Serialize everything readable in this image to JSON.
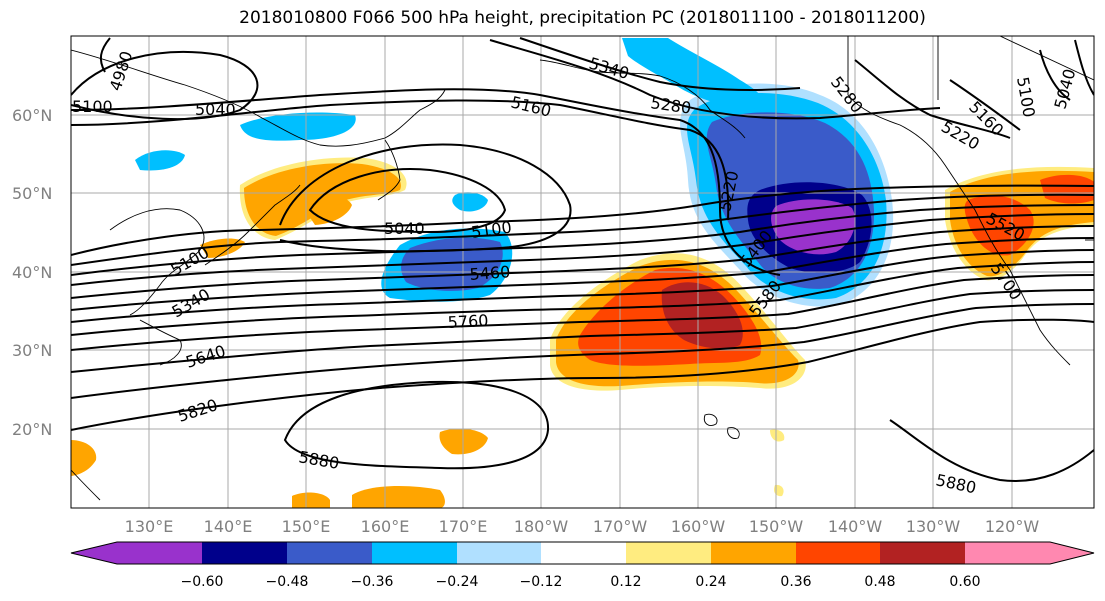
{
  "title": "2018010800 F066 500 hPa height, precipitation PC (2018011100 - 2018011200)",
  "colors": {
    "n072": "#9932CC",
    "n060": "#00008B",
    "n048": "#3A5BC9",
    "n036": "#00BFFF",
    "n024": "#B0E0FF",
    "zero": "#FFFFFF",
    "p012": "#FFEC80",
    "p024": "#FFA500",
    "p036": "#FF4500",
    "p048": "#B22222",
    "p060": "#FF88B0"
  },
  "lat_labels": [
    "60°N",
    "50°N",
    "40°N",
    "30°N",
    "20°N"
  ],
  "lon_labels": [
    "130°E",
    "140°E",
    "150°E",
    "160°E",
    "170°E",
    "180°W",
    "170°W",
    "160°W",
    "150°W",
    "140°W",
    "130°W",
    "120°W"
  ],
  "contour_labels": {
    "c4980": "4980",
    "c5100a": "5100",
    "c5040a": "5040",
    "c5160a": "5160",
    "c5340": "5340",
    "c5280a": "5280",
    "c5280b": "5280",
    "c5160b": "5160",
    "c5220a": "5220",
    "c5100b": "5100",
    "c5040b": "5040",
    "c5220b": "5220",
    "c5040c": "5040",
    "c5100c": "5100",
    "c5100d": "5100",
    "c5460": "5460",
    "c5400": "5400",
    "c5580": "5580",
    "c5520": "5520",
    "c5700": "5700",
    "c5340b": "5340",
    "c5760": "5760",
    "c5640": "5640",
    "c5820": "5820",
    "c5880a": "5880",
    "c5880b": "5880"
  },
  "colorbar": {
    "ticks": [
      "−0.60",
      "−0.48",
      "−0.36",
      "−0.24",
      "−0.12",
      "0.12",
      "0.24",
      "0.36",
      "0.48",
      "0.60"
    ]
  }
}
